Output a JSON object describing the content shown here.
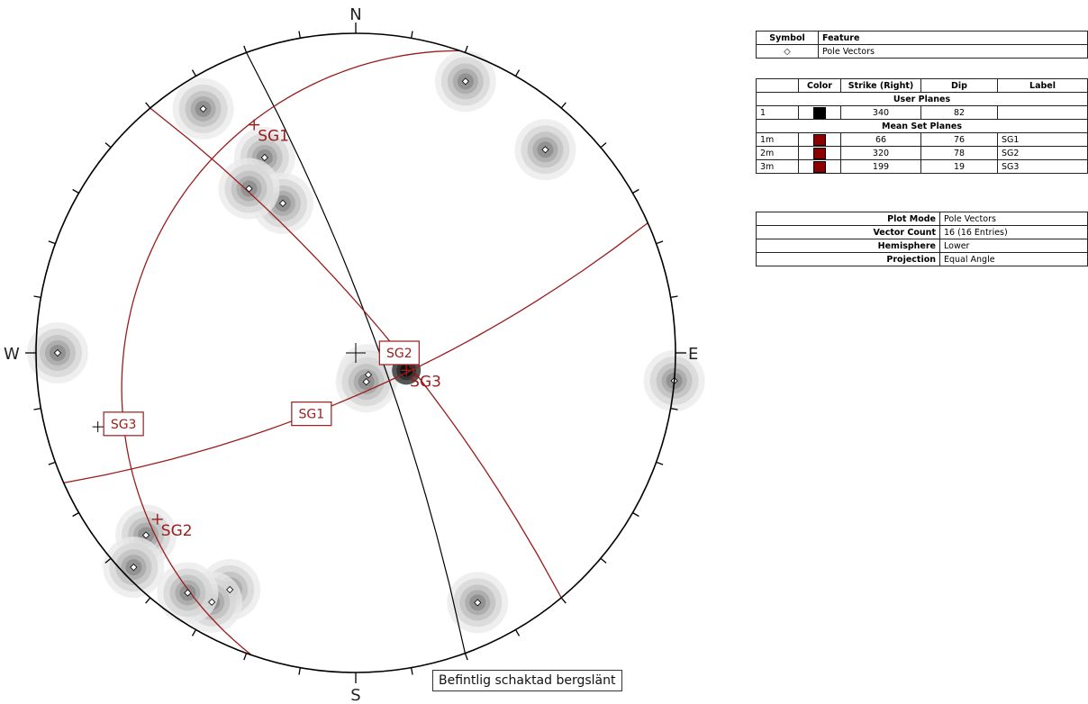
{
  "compass": {
    "n": "N",
    "s": "S",
    "e": "E",
    "w": "W"
  },
  "caption": "Befintlig schaktad bergslänt",
  "colors": {
    "set": "#9b1c1c",
    "user": "#000000",
    "swatch_set": "#8b0000"
  },
  "legend": {
    "symbol_header": "Symbol",
    "feature_header": "Feature",
    "symbol": "◇",
    "feature": "Pole Vectors"
  },
  "planes": {
    "headers": {
      "id": "",
      "color": "Color",
      "strike": "Strike (Right)",
      "dip": "Dip",
      "label": "Label"
    },
    "user_title": "User Planes",
    "mean_title": "Mean Set Planes",
    "user": [
      {
        "id": "1",
        "strike": "340",
        "dip": "82",
        "label": ""
      }
    ],
    "mean": [
      {
        "id": "1m",
        "strike": "66",
        "dip": "76",
        "label": "SG1"
      },
      {
        "id": "2m",
        "strike": "320",
        "dip": "78",
        "label": "SG2"
      },
      {
        "id": "3m",
        "strike": "199",
        "dip": "19",
        "label": "SG3"
      }
    ]
  },
  "info": [
    {
      "key": "Plot Mode",
      "value": "Pole Vectors"
    },
    {
      "key": "Vector Count",
      "value": "16 (16 Entries)"
    },
    {
      "key": "Hemisphere",
      "value": "Lower"
    },
    {
      "key": "Projection",
      "value": "Equal Angle"
    }
  ],
  "stereonet": {
    "poles": [
      {
        "trend": 208,
        "plunge": 10
      },
      {
        "trend": 210,
        "plunge": 6
      },
      {
        "trend": 215,
        "plunge": 5
      },
      {
        "trend": 22,
        "plunge": 5
      },
      {
        "trend": 328,
        "plunge": 6
      },
      {
        "trend": 335,
        "plunge": 22
      },
      {
        "trend": 334,
        "plunge": 35
      },
      {
        "trend": 327,
        "plunge": 27
      },
      {
        "trend": 43,
        "plunge": 8
      },
      {
        "trend": 229,
        "plunge": 8
      },
      {
        "trend": 226,
        "plunge": 2
      },
      {
        "trend": 154,
        "plunge": 8
      },
      {
        "trend": 150,
        "plunge": 81
      },
      {
        "trend": 160,
        "plunge": 79
      },
      {
        "trend": 270,
        "plunge": 4
      },
      {
        "trend": 95,
        "plunge": 0
      }
    ],
    "mean_poles": [
      {
        "label": "SG1",
        "trend": 336,
        "plunge": 14
      },
      {
        "label": "SG2",
        "trend": 230,
        "plunge": 12
      },
      {
        "label": "SG3",
        "trend": 109,
        "plunge": 71
      }
    ],
    "extra_crosses": [
      {
        "trend": 254,
        "plunge": 10
      }
    ],
    "planes": [
      {
        "label": "",
        "strike": 340,
        "dip": 82,
        "color": "#000000"
      },
      {
        "label": "SG1",
        "strike": 66,
        "dip": 76,
        "color": "#9b1c1c"
      },
      {
        "label": "SG2",
        "strike": 320,
        "dip": 78,
        "color": "#9b1c1c"
      },
      {
        "label": "SG3",
        "strike": 199,
        "dip": 19,
        "color": "#9b1c1c"
      }
    ],
    "plane_boxes": [
      {
        "label": "SG1",
        "plane": 1,
        "t": 0.83
      },
      {
        "label": "SG2",
        "plane": 2,
        "t": 0.72
      },
      {
        "label": "SG3",
        "plane": 3,
        "t": 0.3
      }
    ]
  }
}
